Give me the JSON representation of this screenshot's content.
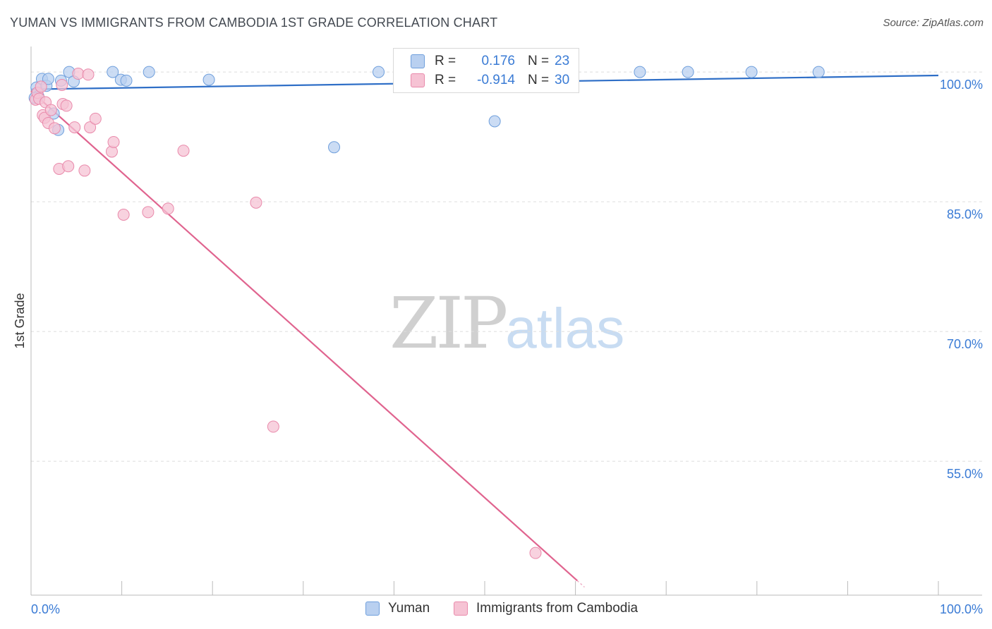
{
  "header": {
    "title": "YUMAN VS IMMIGRANTS FROM CAMBODIA 1ST GRADE CORRELATION CHART",
    "source": "Source: ZipAtlas.com"
  },
  "watermark": {
    "zip": "ZIP",
    "atlas": "atlas"
  },
  "stats": {
    "rows": [
      {
        "r_label": "R =",
        "r_value": "0.176",
        "n_label": "N =",
        "n_value": "23"
      },
      {
        "r_label": "R =",
        "r_value": "-0.914",
        "n_label": "N =",
        "n_value": "30"
      }
    ]
  },
  "legend": {
    "items": [
      {
        "label": "Yuman"
      },
      {
        "label": "Immigrants from Cambodia"
      }
    ]
  },
  "colors": {
    "blue_fill": "#b9d0f0",
    "blue_stroke": "#6f9fdc",
    "blue_line": "#2f6fc7",
    "pink_fill": "#f6c3d4",
    "pink_stroke": "#e98aab",
    "pink_line": "#e0648f",
    "tick_label": "#3a7bd5",
    "grid": "#dddddd"
  },
  "chart_data": {
    "type": "scatter",
    "title": "YUMAN VS IMMIGRANTS FROM CAMBODIA 1ST GRADE CORRELATION CHART",
    "xlabel": "",
    "ylabel": "1st Grade",
    "xlim": [
      0,
      100
    ],
    "ylim": [
      40.5,
      101.8
    ],
    "x_tick_labels": [
      "0.0%",
      "100.0%"
    ],
    "y_ticks": [
      100,
      85,
      70,
      55
    ],
    "y_tick_labels": [
      "100.0%",
      "85.0%",
      "70.0%",
      "55.0%"
    ],
    "grid": true,
    "series": [
      {
        "name": "Yuman",
        "r": 0.176,
        "n": 23,
        "points": [
          [
            0.6,
            98.2
          ],
          [
            0.8,
            97.2
          ],
          [
            1.2,
            99.2
          ],
          [
            1.7,
            98.4
          ],
          [
            1.9,
            99.2
          ],
          [
            2.5,
            95.2
          ],
          [
            3.0,
            93.3
          ],
          [
            3.3,
            99.0
          ],
          [
            4.2,
            100.0
          ],
          [
            4.7,
            98.9
          ],
          [
            9.0,
            100.0
          ],
          [
            9.9,
            99.1
          ],
          [
            10.5,
            99.0
          ],
          [
            13.0,
            100.0
          ],
          [
            19.6,
            99.1
          ],
          [
            33.4,
            91.3
          ],
          [
            38.3,
            100.0
          ],
          [
            51.1,
            94.3
          ],
          [
            67.1,
            100.0
          ],
          [
            72.4,
            100.0
          ],
          [
            79.4,
            100.0
          ],
          [
            86.8,
            100.0
          ],
          [
            0.4,
            97.0
          ]
        ],
        "trend": {
          "x": [
            0,
            100
          ],
          "y": [
            98.0,
            99.6
          ]
        }
      },
      {
        "name": "Immigrants from Cambodia",
        "r": -0.914,
        "n": 30,
        "points": [
          [
            0.5,
            96.8
          ],
          [
            0.7,
            97.6
          ],
          [
            0.9,
            96.9
          ],
          [
            1.1,
            98.3
          ],
          [
            1.6,
            96.5
          ],
          [
            1.3,
            95.0
          ],
          [
            1.5,
            94.7
          ],
          [
            1.9,
            94.1
          ],
          [
            2.2,
            95.6
          ],
          [
            2.6,
            93.5
          ],
          [
            3.1,
            88.8
          ],
          [
            3.4,
            98.5
          ],
          [
            3.5,
            96.3
          ],
          [
            3.9,
            96.1
          ],
          [
            4.1,
            89.1
          ],
          [
            4.8,
            93.6
          ],
          [
            5.2,
            99.8
          ],
          [
            5.9,
            88.6
          ],
          [
            6.3,
            99.7
          ],
          [
            6.5,
            93.6
          ],
          [
            7.1,
            94.6
          ],
          [
            8.9,
            90.8
          ],
          [
            9.1,
            91.9
          ],
          [
            10.2,
            83.5
          ],
          [
            12.9,
            83.8
          ],
          [
            15.1,
            84.2
          ],
          [
            16.8,
            90.9
          ],
          [
            24.8,
            84.9
          ],
          [
            26.7,
            59.0
          ],
          [
            55.6,
            44.4
          ]
        ],
        "trend": {
          "x": [
            0,
            60.2
          ],
          "y": [
            97.8,
            41.2
          ],
          "dashed_extension_x": [
            60.2,
            61.0
          ]
        }
      }
    ]
  }
}
